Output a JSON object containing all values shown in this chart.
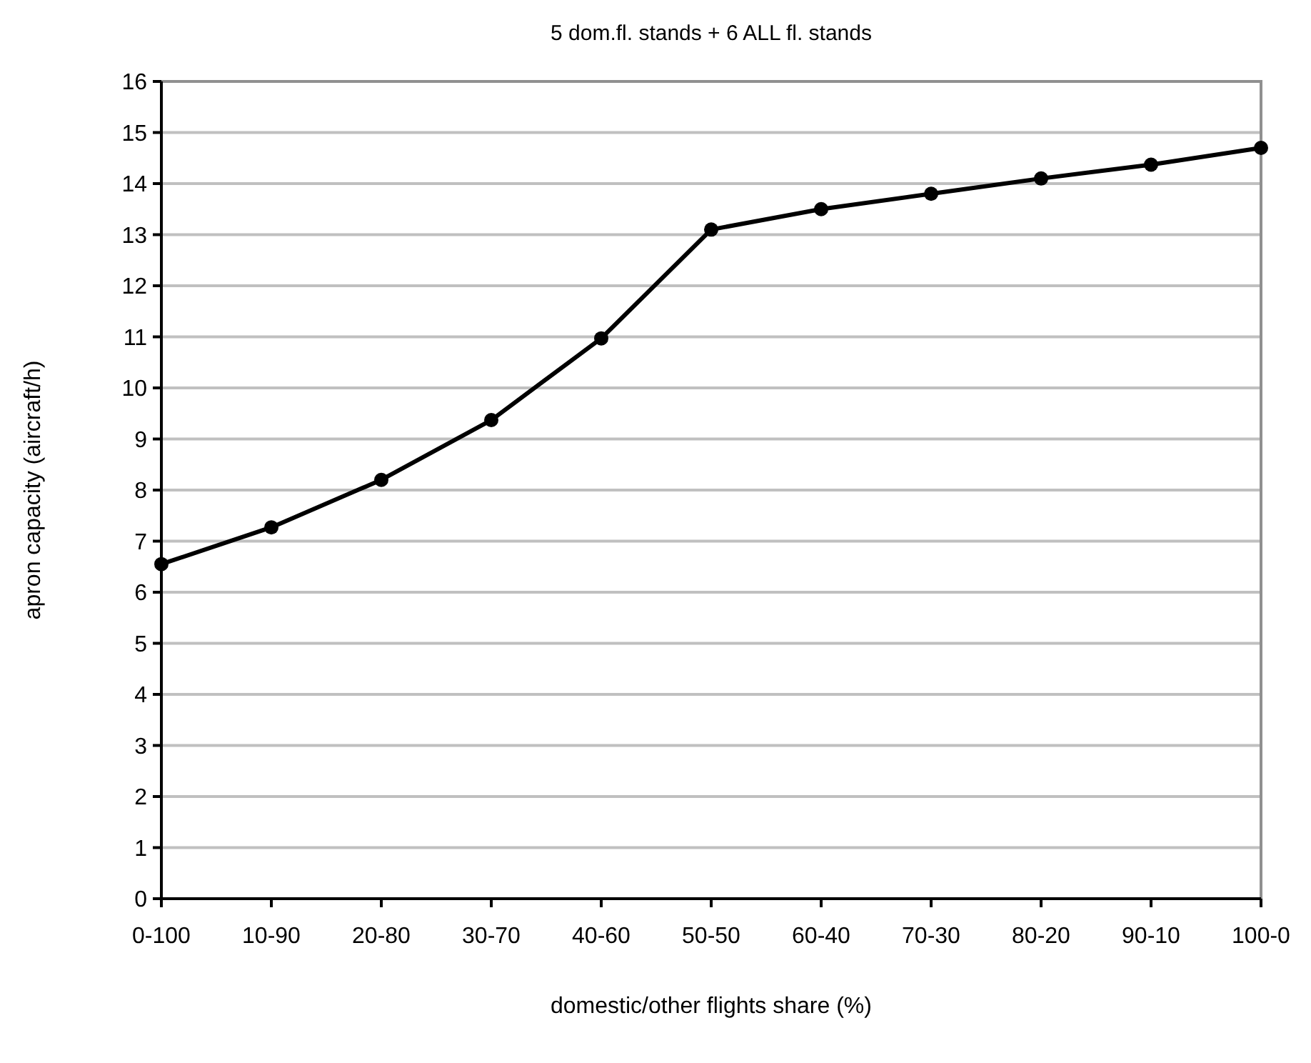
{
  "chart_data": {
    "type": "line",
    "title": "5 dom.fl. stands + 6 ALL fl. stands",
    "xlabel": "domestic/other flights share (%)",
    "ylabel": "apron capacity (aircraft/h)",
    "categories": [
      "0-100",
      "10-90",
      "20-80",
      "30-70",
      "40-60",
      "50-50",
      "60-40",
      "70-30",
      "80-20",
      "90-10",
      "100-0"
    ],
    "series": [
      {
        "color": "#000000",
        "values": [
          6.55,
          7.27,
          8.2,
          9.37,
          10.97,
          13.1,
          13.5,
          13.8,
          14.1,
          14.37,
          14.7
        ]
      }
    ],
    "ylim": [
      0,
      16
    ],
    "yticks": [
      0,
      1,
      2,
      3,
      4,
      5,
      6,
      7,
      8,
      9,
      10,
      11,
      12,
      13,
      14,
      15,
      16
    ],
    "grid": "y",
    "marker": "circle",
    "line_style": "solid"
  }
}
